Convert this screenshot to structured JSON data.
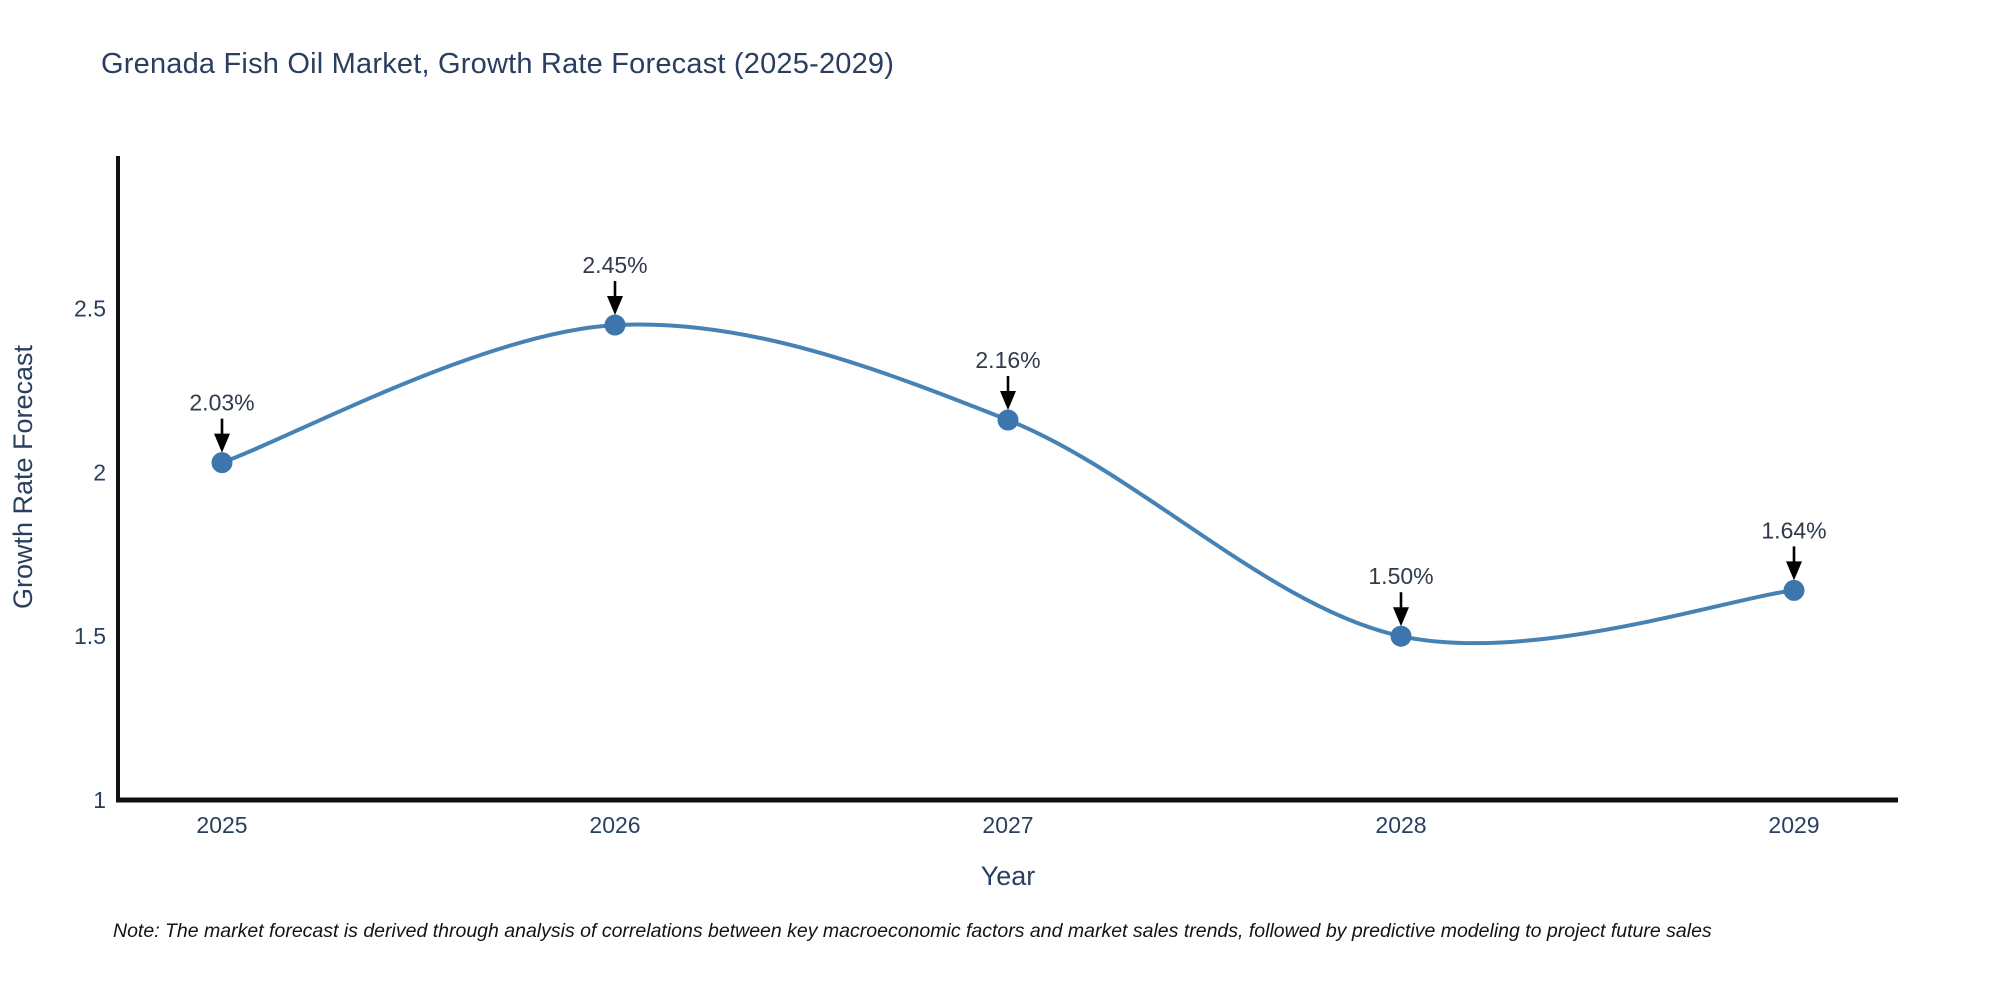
{
  "chart_data": {
    "type": "line",
    "title": "Grenada Fish Oil Market, Growth Rate Forecast (2025-2029)",
    "xlabel": "Year",
    "ylabel": "Growth Rate Forecast",
    "categories": [
      "2025",
      "2026",
      "2027",
      "2028",
      "2029"
    ],
    "series": [
      {
        "name": "Growth Rate Forecast",
        "values": [
          2.03,
          2.45,
          2.16,
          1.5,
          1.64
        ]
      }
    ],
    "point_labels": [
      "2.03%",
      "2.45%",
      "2.16%",
      "1.50%",
      "1.64%"
    ],
    "y_ticks": [
      "1",
      "1.5",
      "2",
      "2.5"
    ],
    "y_tick_values": [
      1,
      1.5,
      2,
      2.5
    ],
    "ylim": [
      1,
      2.96
    ],
    "grid": false,
    "legend_position": "none",
    "line_shape": "spline",
    "colors": {
      "line": "#4682b4",
      "marker": "#3d76ad",
      "axis": "#111111",
      "tick_text": "#2a3f5f",
      "annotation_text": "#2f3b4c",
      "annotation_arrow": "#000000",
      "title_text": "#2a3f5f"
    }
  },
  "note": {
    "text": "Note: The market forecast is derived through analysis of correlations between key macroeconomic factors and market sales trends, followed by predictive modeling to project future sales"
  }
}
